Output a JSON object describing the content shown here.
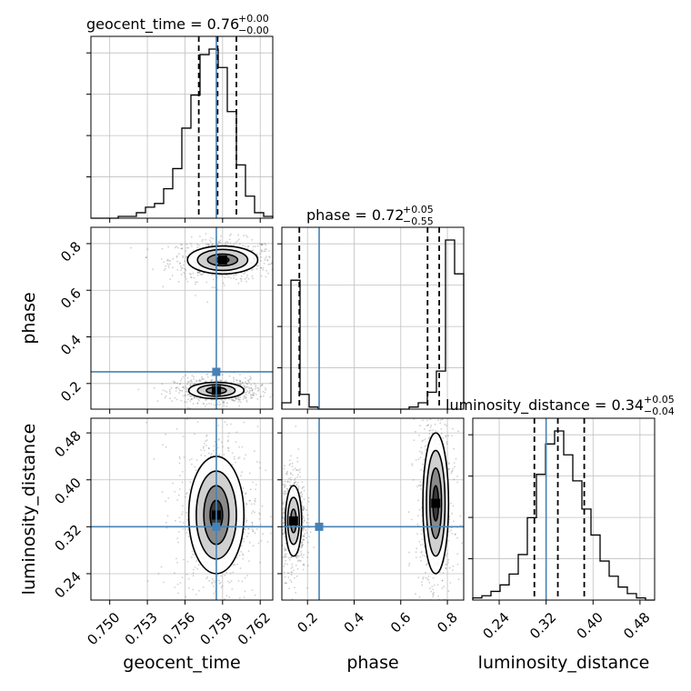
{
  "chart_data": {
    "type": "corner",
    "parameters": [
      "geocent_time",
      "phase",
      "luminosity_distance"
    ],
    "truths": {
      "geocent_time": 0.7585,
      "phase": 0.25,
      "luminosity_distance": 0.32
    },
    "colors": {
      "truth": "#4682b4",
      "hist": "#000000",
      "grid": "#c0c0c0",
      "quantile": "#000000"
    },
    "grid": true,
    "axes": {
      "geocent_time": {
        "lim": [
          0.7485,
          0.763
        ],
        "ticks": [
          0.75,
          0.753,
          0.756,
          0.759,
          0.762
        ],
        "tick_labels": [
          "0.750",
          "0.753",
          "0.756",
          "0.759",
          "0.762"
        ],
        "label": "geocent_time"
      },
      "phase": {
        "lim": [
          0.09,
          0.87
        ],
        "ticks_x": [
          0.2,
          0.4,
          0.6,
          0.8
        ],
        "tick_labels_x": [
          "0.2",
          "0.4",
          "0.6",
          "0.8"
        ],
        "ticks_y": [
          0.2,
          0.4,
          0.6,
          0.8
        ],
        "tick_labels_y": [
          "0.2",
          "0.4",
          "0.6",
          "0.8"
        ],
        "label": "phase"
      },
      "luminosity_distance": {
        "lim": [
          0.195,
          0.505
        ],
        "ticks": [
          0.24,
          0.32,
          0.4,
          0.48
        ],
        "tick_labels": [
          "0.24",
          "0.32",
          "0.40",
          "0.48"
        ],
        "label": "luminosity_distance"
      }
    },
    "titles": [
      {
        "param": "geocent_time",
        "main": "geocent_time = 0.76",
        "plus": "+0.00",
        "minus": "−0.00"
      },
      {
        "param": "phase",
        "main": "phase = 0.72",
        "plus": "+0.05",
        "minus": "−0.55"
      },
      {
        "param": "luminosity_distance",
        "main": "luminosity_distance = 0.34",
        "plus": "+0.05",
        "minus": "−0.04"
      }
    ],
    "hist_1d": {
      "geocent_time": {
        "edges_start": 0.7485,
        "bin_width": 0.000725,
        "counts": [
          0,
          0,
          0,
          1,
          1,
          3,
          6,
          8,
          16,
          27,
          49,
          67,
          89,
          92,
          82,
          58,
          29,
          12,
          3,
          1
        ],
        "quantiles": [
          0.7571,
          0.7586,
          0.7601
        ]
      },
      "phase": {
        "edges_start": 0.09,
        "bin_width": 0.039,
        "counts": [
          3,
          61,
          7,
          1,
          0,
          0,
          0,
          0,
          0,
          0,
          0,
          0,
          0,
          0,
          1,
          3,
          8,
          18,
          80,
          64
        ],
        "quantiles": [
          0.165,
          0.715,
          0.765
        ]
      },
      "luminosity_distance": {
        "edges_start": 0.195,
        "bin_width": 0.0155,
        "counts": [
          1,
          2,
          4,
          7,
          12,
          21,
          38,
          58,
          72,
          78,
          67,
          55,
          42,
          30,
          18,
          11,
          6,
          3,
          1,
          0
        ],
        "quantiles": [
          0.3,
          0.34,
          0.385
        ]
      }
    },
    "density_2d": {
      "phase_vs_geocent_time": {
        "modes": [
          {
            "x": 0.759,
            "y": 0.73,
            "levels": [
              [
                0.0028,
                0.06
              ],
              [
                0.002,
                0.045
              ],
              [
                0.0012,
                0.025
              ],
              [
                0.0005,
                0.012
              ]
            ]
          },
          {
            "x": 0.7585,
            "y": 0.17,
            "levels": [
              [
                0.0022,
                0.035
              ],
              [
                0.0015,
                0.025
              ],
              [
                0.0008,
                0.014
              ]
            ]
          }
        ]
      },
      "luminosity_distance_vs_geocent_time": {
        "modes": [
          {
            "x": 0.7585,
            "y": 0.34,
            "levels": [
              [
                0.0022,
                0.1
              ],
              [
                0.0016,
                0.075
              ],
              [
                0.001,
                0.05
              ],
              [
                0.0005,
                0.025
              ]
            ]
          }
        ]
      },
      "luminosity_distance_vs_phase": {
        "modes": [
          {
            "x": 0.14,
            "y": 0.33,
            "levels": [
              [
                0.035,
                0.06
              ],
              [
                0.025,
                0.04
              ],
              [
                0.012,
                0.02
              ]
            ]
          },
          {
            "x": 0.75,
            "y": 0.36,
            "levels": [
              [
                0.055,
                0.12
              ],
              [
                0.04,
                0.09
              ],
              [
                0.025,
                0.06
              ],
              [
                0.012,
                0.03
              ]
            ]
          }
        ]
      }
    }
  }
}
